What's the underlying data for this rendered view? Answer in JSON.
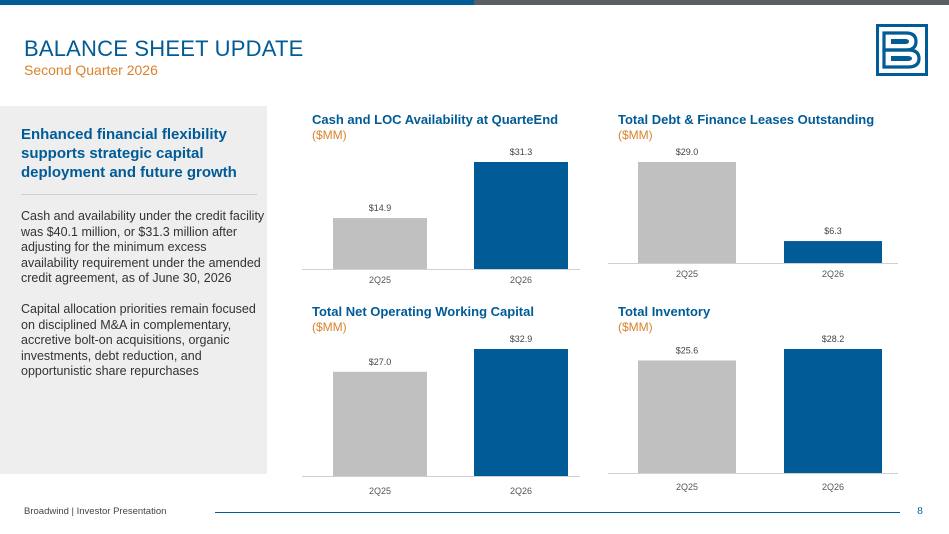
{
  "header": {
    "title": "BALANCE SHEET UPDATE",
    "subtitle": "Second Quarter 2026"
  },
  "colors": {
    "brand_blue": "#005b96",
    "accent_orange": "#d9822b",
    "bar_gray": "#c0c0c0",
    "bar_blue": "#005b96"
  },
  "logo": {
    "icon": "broadwind-logo-icon"
  },
  "left_panel": {
    "heading": "Enhanced financial flexibility supports strategic capital deployment and future growth",
    "paragraph1": "Cash and availability under the credit facility was $40.1 million, or $31.3 million after adjusting for the minimum excess availability requirement under the amended credit agreement, as of June 30, 2026",
    "paragraph2": "Capital allocation priorities remain focused on disciplined M&A in complementary, accretive bolt-on acquisitions, organic investments, debt reduction, and opportunistic share repurchases"
  },
  "chart_data": [
    {
      "type": "bar",
      "title": "Cash and LOC Availability at QuarteEnd",
      "unit": "($MM)",
      "categories": [
        "2Q25",
        "2Q26"
      ],
      "values": [
        14.9,
        31.3
      ],
      "value_labels": [
        "$14.9",
        "$31.3"
      ],
      "colors": [
        "#c0c0c0",
        "#005b96"
      ],
      "ylim": [
        0,
        31.3
      ],
      "grid": false
    },
    {
      "type": "bar",
      "title": "Total Debt & Finance Leases Outstanding",
      "unit": "($MM)",
      "categories": [
        "2Q25",
        "2Q26"
      ],
      "values": [
        29.0,
        6.3
      ],
      "value_labels": [
        "$29.0",
        "$6.3"
      ],
      "colors": [
        "#c0c0c0",
        "#005b96"
      ],
      "ylim": [
        0,
        29.0
      ],
      "grid": false
    },
    {
      "type": "bar",
      "title": "Total Net Operating Working Capital",
      "unit": "($MM)",
      "categories": [
        "2Q25",
        "2Q26"
      ],
      "values": [
        27.0,
        32.9
      ],
      "value_labels": [
        "$27.0",
        "$32.9"
      ],
      "colors": [
        "#c0c0c0",
        "#005b96"
      ],
      "ylim": [
        0,
        32.9
      ],
      "grid": false
    },
    {
      "type": "bar",
      "title": "Total Inventory",
      "unit": "($MM)",
      "categories": [
        "2Q25",
        "2Q26"
      ],
      "values": [
        25.6,
        28.2
      ],
      "value_labels": [
        "$25.6",
        "$28.2"
      ],
      "colors": [
        "#c0c0c0",
        "#005b96"
      ],
      "ylim": [
        0,
        28.2
      ],
      "grid": false
    }
  ],
  "footer": {
    "text": "Broadwind  | Investor Presentation",
    "page_number": "8"
  }
}
